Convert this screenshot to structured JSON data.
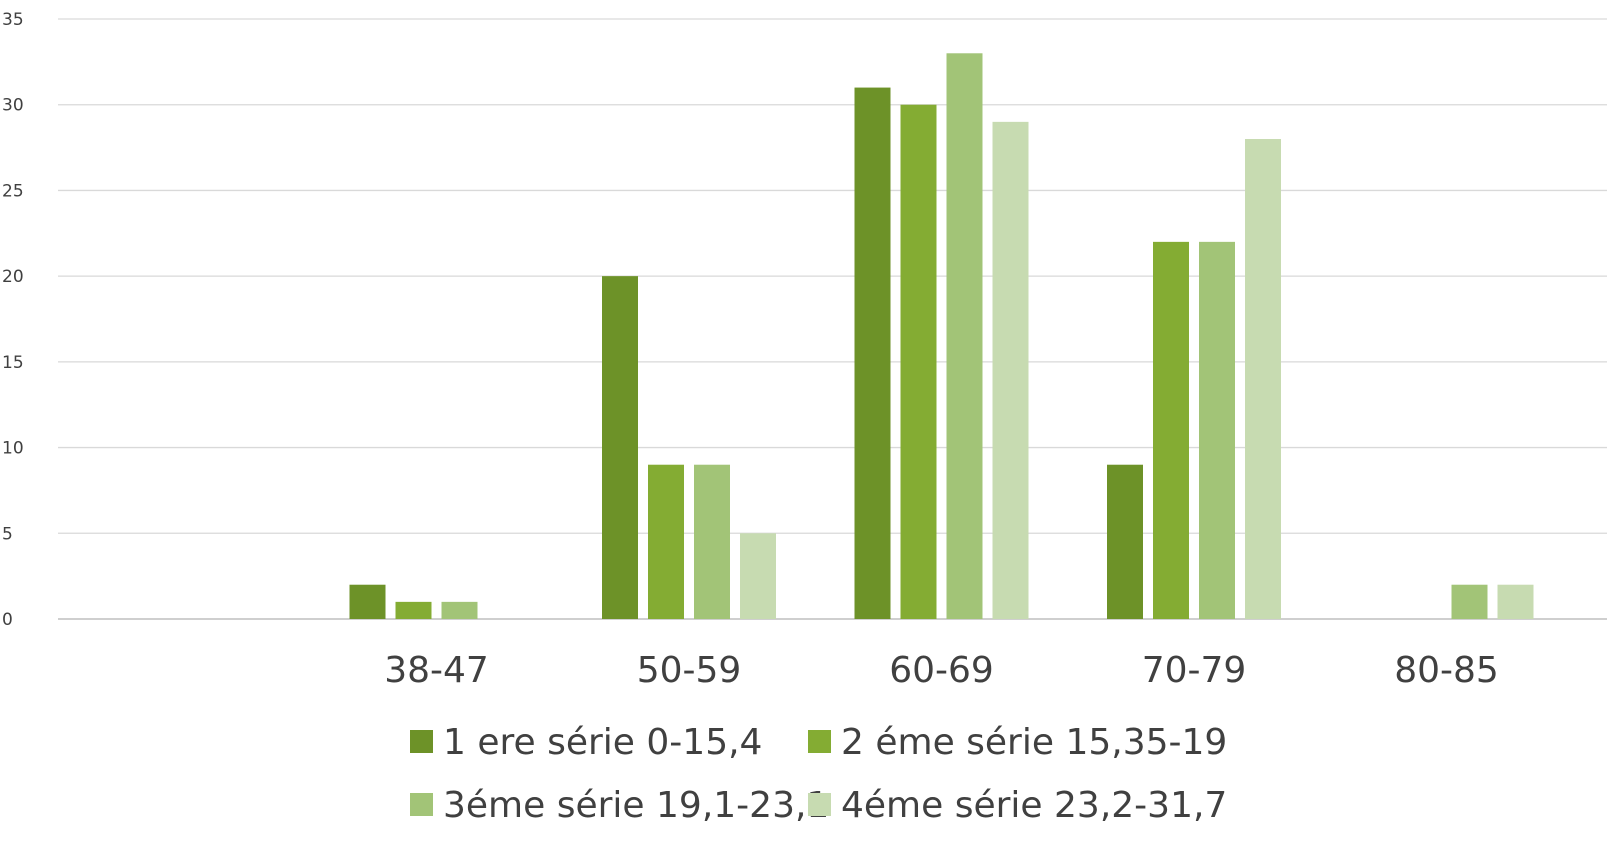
{
  "chart_data": {
    "type": "bar",
    "categories": [
      "38-47",
      "50-59",
      "60-69",
      "70-79",
      "80-85"
    ],
    "series": [
      {
        "name": "1 ere série 0-15,4",
        "color": "#6d9228",
        "values": [
          2,
          20,
          31,
          9,
          0
        ]
      },
      {
        "name": "2 éme série 15,35-19",
        "color": "#84ac33",
        "values": [
          1,
          9,
          30,
          22,
          0
        ]
      },
      {
        "name": "3éme série 19,1-23,1",
        "color": "#a2c477",
        "values": [
          1,
          9,
          33,
          22,
          2
        ]
      },
      {
        "name": "4éme série 23,2-31,7",
        "color": "#c7dbb1",
        "values": [
          0,
          5,
          29,
          28,
          2
        ]
      }
    ],
    "yticks": [
      "0",
      "5",
      "10",
      "15",
      "20",
      "25",
      "30",
      "35"
    ],
    "ylim": [
      0,
      35
    ],
    "grid": true,
    "legend_position": "bottom"
  }
}
